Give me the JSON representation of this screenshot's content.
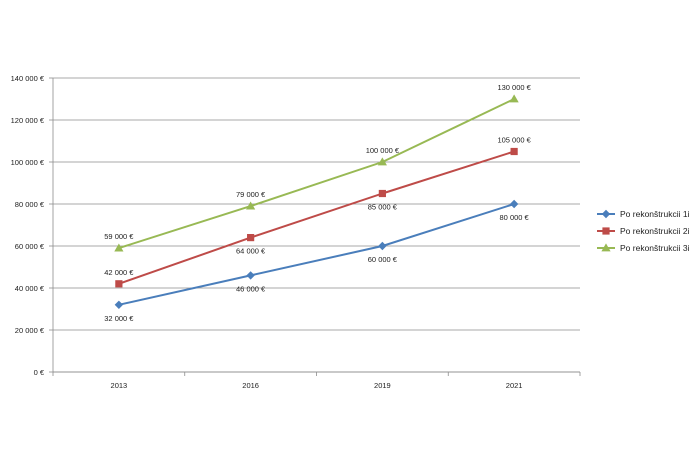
{
  "chart_data": {
    "type": "line",
    "categories": [
      "2013",
      "2016",
      "2019",
      "2021"
    ],
    "ylim": [
      0,
      140000
    ],
    "ytick_step": 20000,
    "ytick_labels": [
      "0 €",
      "20 000 €",
      "40 000 €",
      "60 000 €",
      "80 000 €",
      "100 000 €",
      "120 000 €",
      "140 000 €"
    ],
    "grid": "horizontal",
    "legend_position": "right",
    "series": [
      {
        "name": "Po rekonštrukcii 1i",
        "color": "#4a7ebb",
        "marker": "diamond",
        "values": [
          32000,
          46000,
          60000,
          80000
        ],
        "labels": [
          "32 000 €",
          "46 000 €",
          "60 000 €",
          "80 000 €"
        ],
        "label_position": "below"
      },
      {
        "name": "Po rekonštrukcii 2i",
        "color": "#be4b48",
        "marker": "square",
        "values": [
          42000,
          64000,
          85000,
          105000
        ],
        "labels": [
          "42 000 €",
          "64 000 €",
          "85 000 €",
          "105 000 €"
        ],
        "label_position": "mixed"
      },
      {
        "name": "Po rekonštrukcii 3i",
        "color": "#98b954",
        "marker": "triangle",
        "values": [
          59000,
          79000,
          100000,
          130000
        ],
        "labels": [
          "59 000 €",
          "79 000 €",
          "100 000 €",
          "130 000 €"
        ],
        "label_position": "above"
      }
    ]
  }
}
